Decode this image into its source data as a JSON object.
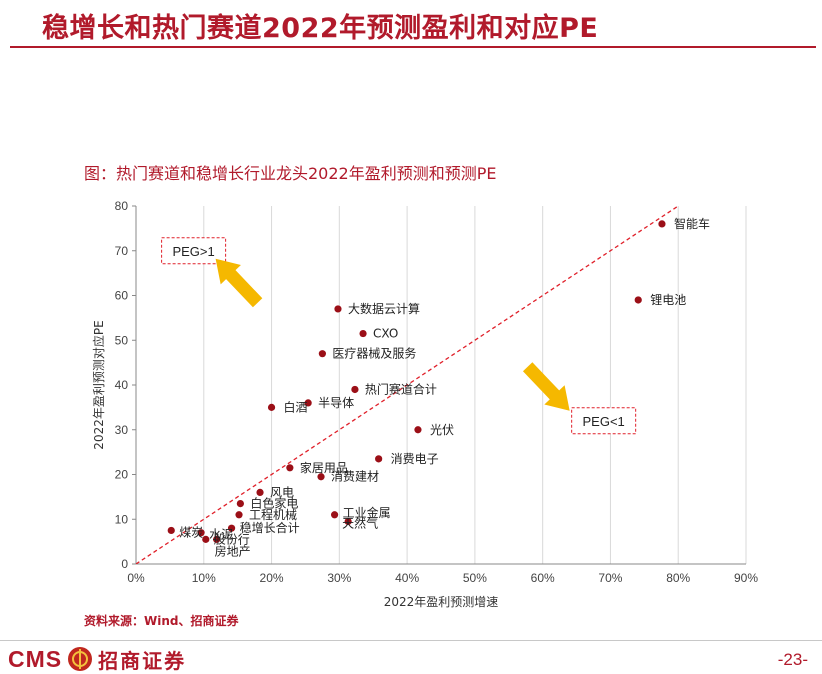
{
  "page": {
    "title": "稳增长和热门赛道2022年预测盈利和对应PE",
    "chart_heading": "图：热门赛道和稳增长行业龙头2022年盈利预测和预测PE",
    "source": "资料来源：Wind、招商证券",
    "logo_cms": "CMS",
    "logo_cn": "招商证券",
    "page_number": "-23-"
  },
  "colors": {
    "brand": "#b11a2b",
    "point": "#9b0f17",
    "diagonal": "#e0202a",
    "arrow": "#f5b800",
    "grid": "#d9d9d9"
  },
  "chart_data": {
    "type": "scatter",
    "xlabel": "2022年盈利预测增速",
    "ylabel": "2022年盈利预测对应PE",
    "xlim": [
      0,
      0.9
    ],
    "ylim": [
      0,
      80
    ],
    "xticks": [
      0,
      0.1,
      0.2,
      0.3,
      0.4,
      0.5,
      0.6,
      0.7,
      0.8,
      0.9
    ],
    "xtick_labels": [
      "0%",
      "10%",
      "20%",
      "30%",
      "40%",
      "50%",
      "60%",
      "70%",
      "80%",
      "90%"
    ],
    "yticks": [
      0,
      10,
      20,
      30,
      40,
      50,
      60,
      70,
      80
    ],
    "ytick_labels": [
      "0",
      "10",
      "20",
      "30",
      "40",
      "50",
      "60",
      "70",
      "80"
    ],
    "grid": "vertical",
    "reference_line": {
      "slope": 100,
      "style": "dashed"
    },
    "annotations": [
      {
        "text": "PEG>1",
        "x": 0.085,
        "y": 70,
        "arrow": "up-left"
      },
      {
        "text": "PEG<1",
        "x": 0.69,
        "y": 32,
        "arrow": "down-right"
      }
    ],
    "points": [
      {
        "label": "智能车",
        "x": 0.776,
        "y": 76
      },
      {
        "label": "锂电池",
        "x": 0.741,
        "y": 59
      },
      {
        "label": "大数据云计算",
        "x": 0.298,
        "y": 57
      },
      {
        "label": "CXO",
        "x": 0.335,
        "y": 51.5
      },
      {
        "label": "医疗器械及服务",
        "x": 0.275,
        "y": 47
      },
      {
        "label": "热门赛道合计",
        "x": 0.323,
        "y": 39
      },
      {
        "label": "半导体",
        "x": 0.254,
        "y": 36
      },
      {
        "label": "白酒",
        "x": 0.2,
        "y": 35
      },
      {
        "label": "光伏",
        "x": 0.416,
        "y": 30
      },
      {
        "label": "消费电子",
        "x": 0.358,
        "y": 23.5
      },
      {
        "label": "家居用品",
        "x": 0.227,
        "y": 21.5
      },
      {
        "label": "消费建材",
        "x": 0.273,
        "y": 19.5
      },
      {
        "label": "风电",
        "x": 0.183,
        "y": 16
      },
      {
        "label": "白色家电",
        "x": 0.154,
        "y": 13.5
      },
      {
        "label": "工程机械",
        "x": 0.152,
        "y": 11
      },
      {
        "label": "工业金属",
        "x": 0.293,
        "y": 11
      },
      {
        "label": "天然气",
        "x": 0.313,
        "y": 9.5
      },
      {
        "label": "稳增长合计",
        "x": 0.141,
        "y": 8
      },
      {
        "label": "煤炭",
        "x": 0.052,
        "y": 7.5
      },
      {
        "label": "水泥",
        "x": 0.096,
        "y": 7
      },
      {
        "label": "股份行",
        "x": 0.103,
        "y": 5.5
      },
      {
        "label": "房地产",
        "x": 0.119,
        "y": 5.5
      }
    ]
  }
}
